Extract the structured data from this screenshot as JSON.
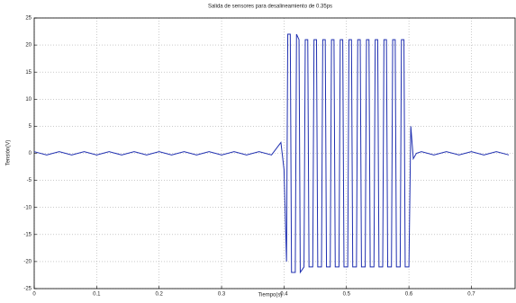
{
  "chart_data": {
    "type": "line",
    "title": "Salida de sensores para desalineamiento de 0.35ps",
    "xlabel": "Tiempo(s)",
    "ylabel": "Tensión(V)",
    "x": [
      0,
      0.02,
      0.04,
      0.06,
      0.08,
      0.1,
      0.12,
      0.14,
      0.16,
      0.18,
      0.2,
      0.22,
      0.24,
      0.26,
      0.28,
      0.3,
      0.32,
      0.34,
      0.36,
      0.38,
      0.395,
      0.4,
      0.404,
      0.406,
      0.41,
      0.412,
      0.418,
      0.42,
      0.424,
      0.426,
      0.432,
      0.434,
      0.438,
      0.44,
      0.446,
      0.448,
      0.452,
      0.454,
      0.46,
      0.462,
      0.466,
      0.468,
      0.474,
      0.476,
      0.48,
      0.482,
      0.488,
      0.49,
      0.494,
      0.496,
      0.502,
      0.504,
      0.508,
      0.51,
      0.516,
      0.518,
      0.522,
      0.524,
      0.53,
      0.532,
      0.536,
      0.538,
      0.544,
      0.546,
      0.55,
      0.552,
      0.558,
      0.56,
      0.564,
      0.566,
      0.572,
      0.574,
      0.578,
      0.58,
      0.586,
      0.588,
      0.592,
      0.594,
      0.6,
      0.603,
      0.607,
      0.612,
      0.62,
      0.64,
      0.66,
      0.68,
      0.7,
      0.72,
      0.74,
      0.76
    ],
    "series": [
      {
        "name": "Tensión",
        "color": "#1f2fb0",
        "values": [
          0.3,
          -0.3,
          0.3,
          -0.3,
          0.3,
          -0.3,
          0.3,
          -0.3,
          0.3,
          -0.3,
          0.3,
          -0.3,
          0.3,
          -0.3,
          0.3,
          -0.3,
          0.3,
          -0.3,
          0.3,
          -0.3,
          2,
          -3,
          -20,
          22,
          22,
          -22,
          -22,
          22,
          21,
          -22,
          -21,
          21,
          21,
          -21,
          -21,
          21,
          21,
          -21,
          -21,
          21,
          21,
          -21,
          -21,
          21,
          21,
          -21,
          -21,
          21,
          21,
          -21,
          -21,
          21,
          21,
          -21,
          -21,
          21,
          21,
          -21,
          -21,
          21,
          21,
          -21,
          -21,
          21,
          21,
          -21,
          -21,
          21,
          21,
          -21,
          -21,
          21,
          21,
          -21,
          -21,
          21,
          21,
          -21,
          -21,
          5,
          -1,
          0,
          0.3,
          -0.3,
          0.3,
          -0.3,
          0.3,
          -0.3,
          0.3,
          -0.3
        ]
      }
    ],
    "xlim": [
      0,
      0.77
    ],
    "xticks": [
      0,
      0.1,
      0.2,
      0.3,
      0.4,
      0.5,
      0.6,
      0.7
    ],
    "ylim": [
      -25,
      25
    ],
    "yticks": [
      -25,
      -20,
      -15,
      -10,
      -5,
      0,
      5,
      10,
      15,
      20,
      25
    ],
    "grid": true
  }
}
